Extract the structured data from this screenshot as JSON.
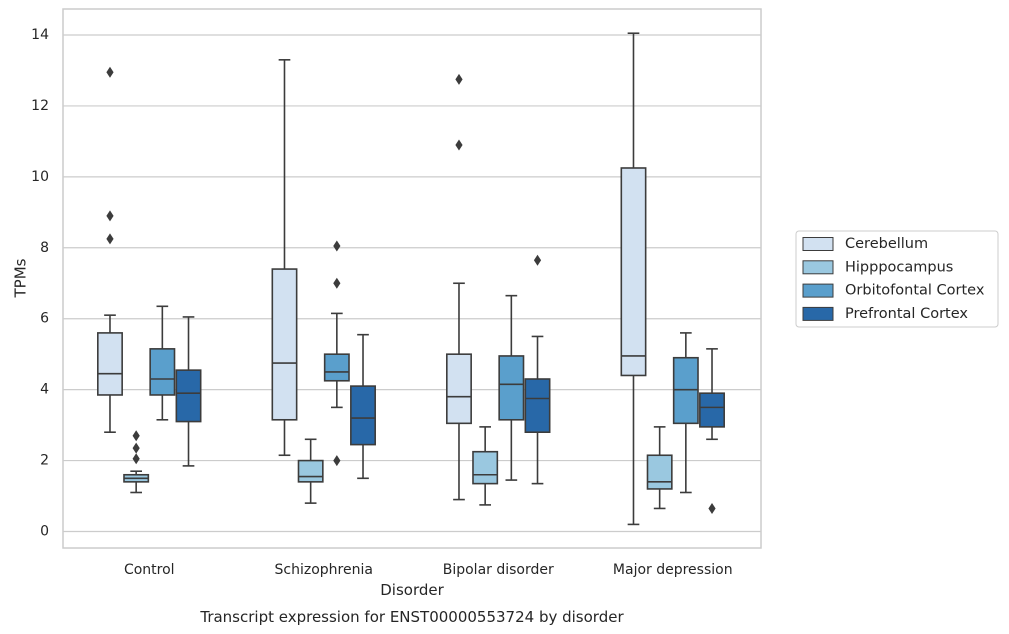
{
  "chart_data": {
    "type": "boxplot",
    "title": "",
    "caption": "Transcript expression for ENST00000553724 by disorder",
    "xlabel": "Disorder",
    "ylabel": "TPMs",
    "ylim": [
      -0.45,
      14.7
    ],
    "yticks": [
      0,
      2,
      4,
      6,
      8,
      10,
      12,
      14
    ],
    "grid": "horizontal",
    "legend_position": "right",
    "categories": [
      "Control",
      "Schizophrenia",
      "Bipolar disorder",
      "Major depression"
    ],
    "series": [
      {
        "name": "Cerebellum",
        "color": "#d2e1f1",
        "boxes": [
          {
            "whisker_low": 2.8,
            "q1": 3.85,
            "median": 4.45,
            "q3": 5.6,
            "whisker_high": 6.1,
            "outliers": [
              12.95,
              8.9,
              8.25
            ]
          },
          {
            "whisker_low": 2.15,
            "q1": 3.15,
            "median": 4.75,
            "q3": 7.4,
            "whisker_high": 13.3,
            "outliers": []
          },
          {
            "whisker_low": 0.9,
            "q1": 3.05,
            "median": 3.8,
            "q3": 5.0,
            "whisker_high": 7.0,
            "outliers": [
              12.75,
              10.9
            ]
          },
          {
            "whisker_low": 0.2,
            "q1": 4.4,
            "median": 4.95,
            "q3": 10.25,
            "whisker_high": 14.05,
            "outliers": []
          }
        ]
      },
      {
        "name": "Hipppocampus",
        "color": "#9ac8e0",
        "boxes": [
          {
            "whisker_low": 1.1,
            "q1": 1.4,
            "median": 1.5,
            "q3": 1.6,
            "whisker_high": 1.7,
            "outliers": [
              2.7,
              2.35,
              2.05
            ]
          },
          {
            "whisker_low": 0.8,
            "q1": 1.4,
            "median": 1.55,
            "q3": 2.0,
            "whisker_high": 2.6,
            "outliers": []
          },
          {
            "whisker_low": 0.75,
            "q1": 1.35,
            "median": 1.6,
            "q3": 2.25,
            "whisker_high": 2.95,
            "outliers": []
          },
          {
            "whisker_low": 0.65,
            "q1": 1.2,
            "median": 1.4,
            "q3": 2.15,
            "whisker_high": 2.95,
            "outliers": []
          }
        ]
      },
      {
        "name": "Orbitofontal Cortex",
        "color": "#5a9fcc",
        "boxes": [
          {
            "whisker_low": 3.15,
            "q1": 3.85,
            "median": 4.3,
            "q3": 5.15,
            "whisker_high": 6.35,
            "outliers": []
          },
          {
            "whisker_low": 3.5,
            "q1": 4.25,
            "median": 4.5,
            "q3": 5.0,
            "whisker_high": 6.15,
            "outliers": [
              8.05,
              7.0,
              2.0
            ]
          },
          {
            "whisker_low": 1.45,
            "q1": 3.15,
            "median": 4.15,
            "q3": 4.95,
            "whisker_high": 6.65,
            "outliers": []
          },
          {
            "whisker_low": 1.1,
            "q1": 3.05,
            "median": 4.0,
            "q3": 4.9,
            "whisker_high": 5.6,
            "outliers": []
          }
        ]
      },
      {
        "name": "Prefrontal Cortex",
        "color": "#2868a8",
        "boxes": [
          {
            "whisker_low": 1.85,
            "q1": 3.1,
            "median": 3.9,
            "q3": 4.55,
            "whisker_high": 6.05,
            "outliers": []
          },
          {
            "whisker_low": 1.5,
            "q1": 2.45,
            "median": 3.2,
            "q3": 4.1,
            "whisker_high": 5.55,
            "outliers": []
          },
          {
            "whisker_low": 1.35,
            "q1": 2.8,
            "median": 3.75,
            "q3": 4.3,
            "whisker_high": 5.5,
            "outliers": [
              7.65
            ]
          },
          {
            "whisker_low": 2.6,
            "q1": 2.95,
            "median": 3.5,
            "q3": 3.9,
            "whisker_high": 5.15,
            "outliers": [
              0.65
            ]
          }
        ]
      }
    ]
  }
}
